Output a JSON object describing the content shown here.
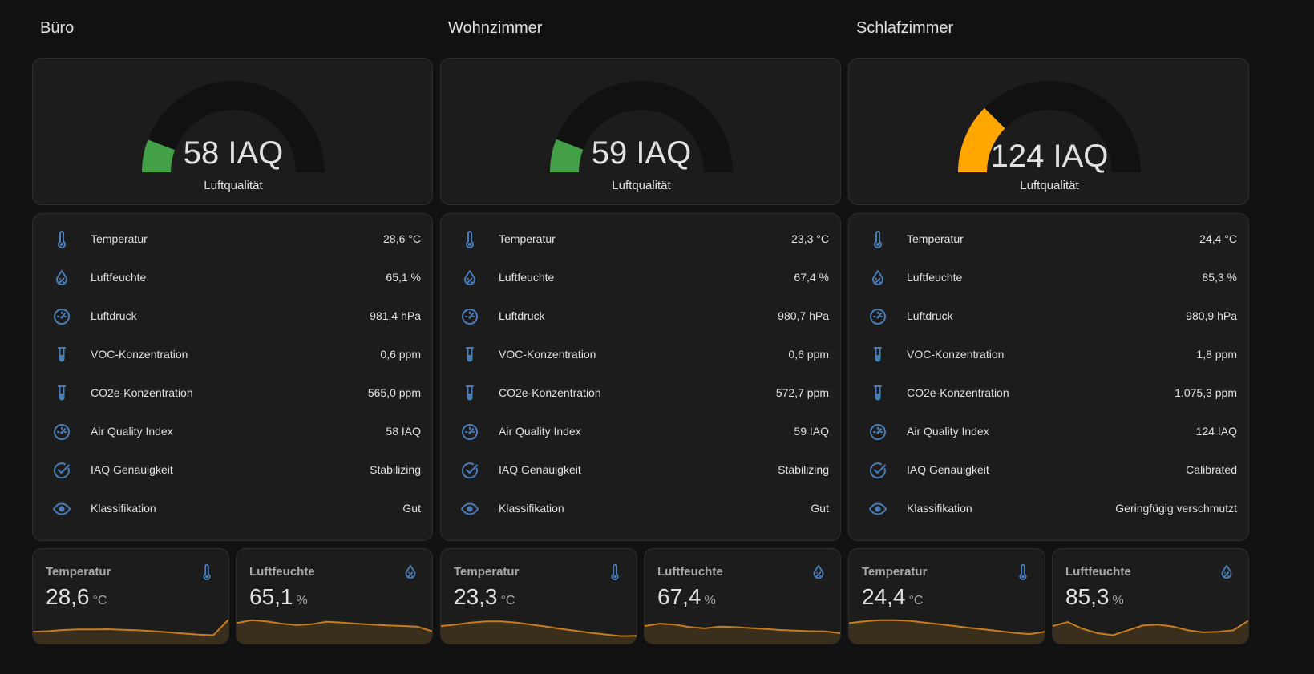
{
  "colors": {
    "background": "#111111",
    "card": "#1c1c1c",
    "icon": "#4a7db8",
    "gauge_good": "#43a047",
    "gauge_moderate": "#ffa600",
    "gauge_track": "#111111",
    "spark_line": "#c77d1e"
  },
  "gauge_max": 500,
  "rooms": [
    {
      "title": "Büro",
      "gauge": {
        "value_text": "58 IAQ",
        "label": "Luftqualität",
        "value": 58,
        "color": "#43a047"
      },
      "rows": [
        {
          "icon": "thermometer-icon",
          "label": "Temperatur",
          "value": "28,6 °C"
        },
        {
          "icon": "water-percent-icon",
          "label": "Luftfeuchte",
          "value": "65,1 %"
        },
        {
          "icon": "gauge-icon",
          "label": "Luftdruck",
          "value": "981,4 hPa"
        },
        {
          "icon": "test-tube-icon",
          "label": "VOC-Konzentration",
          "value": "0,6 ppm"
        },
        {
          "icon": "test-tube-icon",
          "label": "CO2e-Konzentration",
          "value": "565,0 ppm"
        },
        {
          "icon": "gauge-icon",
          "label": "Air Quality Index",
          "value": "58 IAQ"
        },
        {
          "icon": "check-circle-icon",
          "label": "IAQ Genauigkeit",
          "value": "Stabilizing"
        },
        {
          "icon": "eye-icon",
          "label": "Klassifikation",
          "value": "Gut"
        }
      ],
      "sensors": [
        {
          "name": "Temperatur",
          "icon": "thermometer-icon",
          "value": "28,6",
          "unit": "°C",
          "trend": [
            0.3,
            0.32,
            0.36,
            0.38,
            0.38,
            0.39,
            0.37,
            0.35,
            0.32,
            0.28,
            0.24,
            0.2,
            0.18,
            0.72
          ]
        },
        {
          "name": "Luftfeuchte",
          "icon": "water-percent-icon",
          "value": "65,1",
          "unit": "%",
          "trend": [
            0.6,
            0.7,
            0.66,
            0.58,
            0.53,
            0.56,
            0.65,
            0.62,
            0.58,
            0.55,
            0.52,
            0.5,
            0.48,
            0.32
          ]
        }
      ]
    },
    {
      "title": "Wohnzimmer",
      "gauge": {
        "value_text": "59 IAQ",
        "label": "Luftqualität",
        "value": 59,
        "color": "#43a047"
      },
      "rows": [
        {
          "icon": "thermometer-icon",
          "label": "Temperatur",
          "value": "23,3 °C"
        },
        {
          "icon": "water-percent-icon",
          "label": "Luftfeuchte",
          "value": "67,4 %"
        },
        {
          "icon": "gauge-icon",
          "label": "Luftdruck",
          "value": "980,7 hPa"
        },
        {
          "icon": "test-tube-icon",
          "label": "VOC-Konzentration",
          "value": "0,6 ppm"
        },
        {
          "icon": "test-tube-icon",
          "label": "CO2e-Konzentration",
          "value": "572,7 ppm"
        },
        {
          "icon": "gauge-icon",
          "label": "Air Quality Index",
          "value": "59 IAQ"
        },
        {
          "icon": "check-circle-icon",
          "label": "IAQ Genauigkeit",
          "value": "Stabilizing"
        },
        {
          "icon": "eye-icon",
          "label": "Klassifikation",
          "value": "Gut"
        }
      ],
      "sensors": [
        {
          "name": "Temperatur",
          "icon": "thermometer-icon",
          "value": "23,3",
          "unit": "°C",
          "trend": [
            0.5,
            0.55,
            0.62,
            0.66,
            0.66,
            0.62,
            0.55,
            0.48,
            0.4,
            0.33,
            0.26,
            0.2,
            0.15,
            0.16
          ]
        },
        {
          "name": "Luftfeuchte",
          "icon": "water-percent-icon",
          "value": "67,4",
          "unit": "%",
          "trend": [
            0.5,
            0.58,
            0.55,
            0.46,
            0.42,
            0.48,
            0.46,
            0.43,
            0.4,
            0.36,
            0.34,
            0.32,
            0.31,
            0.25
          ]
        }
      ]
    },
    {
      "title": "Schlafzimmer",
      "gauge": {
        "value_text": "124 IAQ",
        "label": "Luftqualität",
        "value": 124,
        "color": "#ffa600"
      },
      "rows": [
        {
          "icon": "thermometer-icon",
          "label": "Temperatur",
          "value": "24,4 °C"
        },
        {
          "icon": "water-percent-icon",
          "label": "Luftfeuchte",
          "value": "85,3 %"
        },
        {
          "icon": "gauge-icon",
          "label": "Luftdruck",
          "value": "980,9 hPa"
        },
        {
          "icon": "test-tube-icon",
          "label": "VOC-Konzentration",
          "value": "1,8 ppm"
        },
        {
          "icon": "test-tube-icon",
          "label": "CO2e-Konzentration",
          "value": "1.075,3 ppm"
        },
        {
          "icon": "gauge-icon",
          "label": "Air Quality Index",
          "value": "124 IAQ"
        },
        {
          "icon": "check-circle-icon",
          "label": "IAQ Genauigkeit",
          "value": "Calibrated"
        },
        {
          "icon": "eye-icon",
          "label": "Klassifikation",
          "value": "Geringfügig verschmutzt"
        }
      ],
      "sensors": [
        {
          "name": "Temperatur",
          "icon": "thermometer-icon",
          "value": "24,4",
          "unit": "°C",
          "trend": [
            0.6,
            0.66,
            0.7,
            0.7,
            0.68,
            0.62,
            0.56,
            0.5,
            0.44,
            0.38,
            0.32,
            0.26,
            0.22,
            0.3
          ]
        },
        {
          "name": "Luftfeuchte",
          "icon": "water-percent-icon",
          "value": "85,3",
          "unit": "%",
          "trend": [
            0.5,
            0.64,
            0.4,
            0.25,
            0.18,
            0.35,
            0.52,
            0.55,
            0.48,
            0.35,
            0.28,
            0.3,
            0.35,
            0.68
          ]
        }
      ]
    }
  ]
}
